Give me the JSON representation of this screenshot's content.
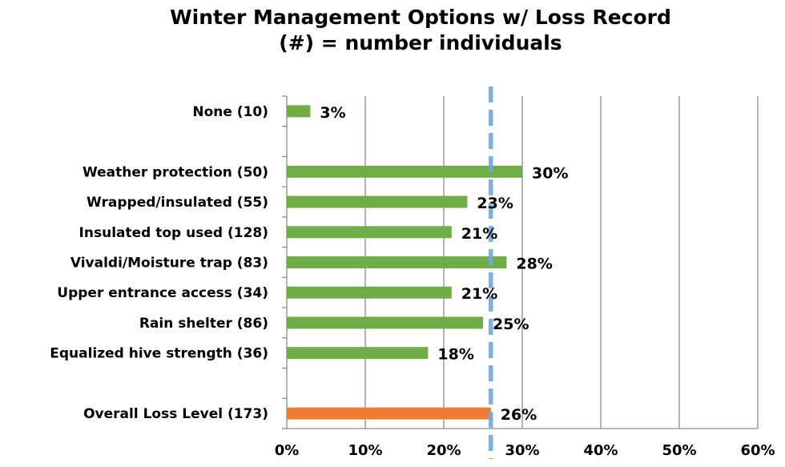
{
  "chart_data": {
    "type": "bar",
    "orientation": "horizontal",
    "title": "Winter Management Options w/ Loss Record",
    "subtitle": "(#) = number individuals",
    "categories": [
      "None (10)",
      "",
      "Weather protection (50)",
      "Wrapped/insulated (55)",
      "Insulated top used (128)",
      "Vivaldi/Moisture trap (83)",
      "Upper entrance access (34)",
      "Rain shelter (86)",
      "Equalized hive strength (36)",
      "",
      "Overall Loss Level (173)"
    ],
    "values": [
      3,
      null,
      30,
      23,
      21,
      28,
      21,
      25,
      18,
      null,
      26
    ],
    "data_labels": [
      "3%",
      "",
      "30%",
      "23%",
      "21%",
      "28%",
      "21%",
      "25%",
      "18%",
      "",
      "26%"
    ],
    "bar_colors": [
      "#70ad47",
      "",
      "#70ad47",
      "#70ad47",
      "#70ad47",
      "#70ad47",
      "#70ad47",
      "#70ad47",
      "#70ad47",
      "",
      "#ed7d31"
    ],
    "reference_line": {
      "value": 26,
      "style": "dashed",
      "color": "#6fa8dc"
    },
    "xlim": [
      0,
      60
    ],
    "xticks": [
      0,
      10,
      20,
      30,
      40,
      50,
      60
    ],
    "xtick_labels": [
      "0%",
      "10%",
      "20%",
      "30%",
      "40%",
      "50%",
      "60%"
    ],
    "xlabel": "",
    "ylabel": "",
    "grid": "vertical",
    "legend": "none"
  }
}
